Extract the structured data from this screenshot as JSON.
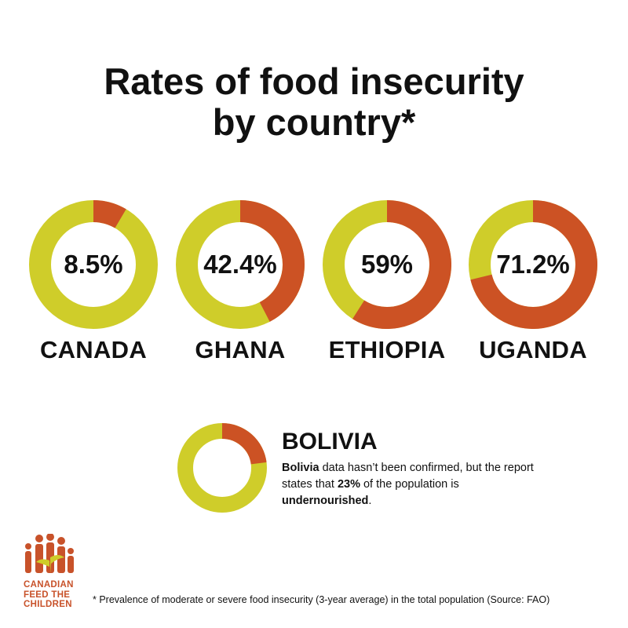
{
  "title": {
    "line1": "Rates of food insecurity",
    "line2": "by country*"
  },
  "colors": {
    "insecure": "#cc5224",
    "remainder": "#cfcd2a"
  },
  "chart_data": {
    "type": "pie",
    "title": "Rates of food insecurity by country*",
    "unit": "%",
    "categories": [
      "CANADA",
      "GHANA",
      "ETHIOPIA",
      "UGANDA"
    ],
    "values": [
      8.5,
      42.4,
      59,
      71.2
    ],
    "value_labels": [
      "8.5%",
      "42.4%",
      "59%",
      "71.2%"
    ],
    "legend": "none"
  },
  "bolivia": {
    "heading": "BOLIVIA",
    "value": 23,
    "note": {
      "part1_bold": "Bolivia",
      "part2": " data hasn’t been confirmed, but the report states that ",
      "part3_bold": "23%",
      "part4": " of the population is ",
      "part5_bold": "undernourished",
      "part6": "."
    }
  },
  "logo": {
    "icon": "family-people-logo",
    "lines": [
      "CANADIAN",
      "FEED THE",
      "CHILDREN"
    ]
  },
  "footnote": "* Prevalence of moderate or severe food insecurity (3-year average) in the total population (Source: FAO)"
}
